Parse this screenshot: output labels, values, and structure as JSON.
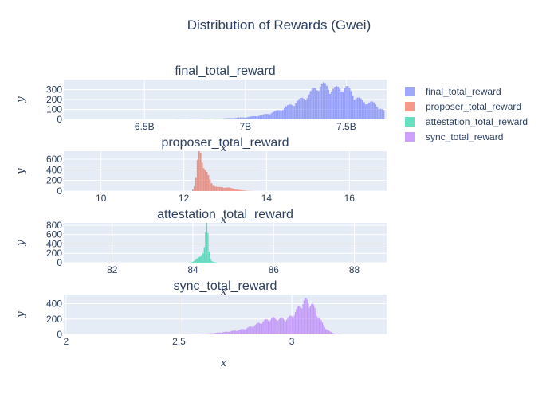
{
  "chart_data": {
    "type": "bar",
    "title": "Distribution of Rewards (Gwei)",
    "legend_position": "top-right",
    "grid": true,
    "legend": [
      {
        "name": "final_total_reward",
        "color": "#636efa"
      },
      {
        "name": "proposer_total_reward",
        "color": "#EF553B"
      },
      {
        "name": "attestation_total_reward",
        "color": "#00cc96"
      },
      {
        "name": "sync_total_reward",
        "color": "#ab63fa"
      }
    ],
    "subplots": [
      {
        "title": "final_total_reward",
        "xlabel": "x",
        "ylabel": "y",
        "color": "#636efa",
        "xlim": [
          6100000000.0,
          7700000000.0
        ],
        "ylim": [
          0,
          400
        ],
        "xticks": [
          {
            "value": 6500000000.0,
            "label": "6.5B"
          },
          {
            "value": 7000000000.0,
            "label": "7B"
          },
          {
            "value": 7500000000.0,
            "label": "7.5B"
          }
        ],
        "yticks": [
          {
            "value": 0,
            "label": "0"
          },
          {
            "value": 100,
            "label": "100"
          },
          {
            "value": 200,
            "label": "200"
          },
          {
            "value": 300,
            "label": "300"
          }
        ],
        "dist": {
          "bin_min": 6400000000.0,
          "bin_max": 7690000000.0,
          "bins": 160,
          "peaks": [
            {
              "mu": 7420000000.0,
              "sigma": 160000000.0,
              "amp": 280
            },
            {
              "mu": 7370000000.0,
              "sigma": 30000000.0,
              "amp": 60
            },
            {
              "mu": 7500000000.0,
              "sigma": 30000000.0,
              "amp": 55
            },
            {
              "mu": 7030000000.0,
              "sigma": 150000000.0,
              "amp": 12
            },
            {
              "mu": 7640000000.0,
              "sigma": 30000000.0,
              "amp": 40
            }
          ]
        }
      },
      {
        "title": "proposer_total_reward",
        "xlabel": "x",
        "ylabel": "y",
        "color": "#EF553B",
        "xlim": [
          9.1,
          16.9
        ],
        "ylim": [
          0,
          750
        ],
        "xticks": [
          {
            "value": 10,
            "label": "10"
          },
          {
            "value": 12,
            "label": "12"
          },
          {
            "value": 14,
            "label": "14"
          },
          {
            "value": 16,
            "label": "16"
          }
        ],
        "yticks": [
          {
            "value": 0,
            "label": "0"
          },
          {
            "value": 200,
            "label": "200"
          },
          {
            "value": 400,
            "label": "400"
          },
          {
            "value": 600,
            "label": "600"
          }
        ],
        "dist": {
          "bin_min": 12.2,
          "bin_max": 13.9,
          "bins": 45,
          "peaks": [
            {
              "mu": 12.38,
              "sigma": 0.05,
              "amp": 640
            },
            {
              "mu": 12.5,
              "sigma": 0.12,
              "amp": 330
            },
            {
              "mu": 12.95,
              "sigma": 0.25,
              "amp": 70
            }
          ]
        }
      },
      {
        "title": "attestation_total_reward",
        "xlabel": "x",
        "ylabel": "y",
        "color": "#00cc96",
        "xlim": [
          80.8,
          88.8
        ],
        "ylim": [
          0,
          850
        ],
        "xticks": [
          {
            "value": 82,
            "label": "82"
          },
          {
            "value": 84,
            "label": "84"
          },
          {
            "value": 86,
            "label": "86"
          },
          {
            "value": 88,
            "label": "88"
          }
        ],
        "yticks": [
          {
            "value": 0,
            "label": "0"
          },
          {
            "value": 200,
            "label": "200"
          },
          {
            "value": 400,
            "label": "400"
          },
          {
            "value": 600,
            "label": "600"
          },
          {
            "value": 800,
            "label": "800"
          }
        ],
        "dist": {
          "bin_min": 83.4,
          "bin_max": 84.6,
          "bins": 40,
          "peaks": [
            {
              "mu": 84.35,
              "sigma": 0.035,
              "amp": 700
            },
            {
              "mu": 84.25,
              "sigma": 0.12,
              "amp": 170
            }
          ]
        }
      },
      {
        "title": "sync_total_reward",
        "xlabel": "x",
        "ylabel": "y",
        "color": "#ab63fa",
        "xlim": [
          1.99,
          3.42
        ],
        "ylim": [
          0,
          520
        ],
        "xticks": [
          {
            "value": 2,
            "label": "2"
          },
          {
            "value": 2.5,
            "label": "2.5"
          },
          {
            "value": 3,
            "label": "3"
          }
        ],
        "yticks": [
          {
            "value": 0,
            "label": "0"
          },
          {
            "value": 200,
            "label": "200"
          },
          {
            "value": 400,
            "label": "400"
          }
        ],
        "dist": {
          "bin_min": 2.5,
          "bin_max": 3.22,
          "bins": 150,
          "peaks": [
            {
              "mu": 3.07,
              "sigma": 0.045,
              "amp": 390
            },
            {
              "mu": 2.93,
              "sigma": 0.07,
              "amp": 175
            },
            {
              "mu": 2.8,
              "sigma": 0.1,
              "amp": 45
            }
          ]
        }
      }
    ]
  }
}
